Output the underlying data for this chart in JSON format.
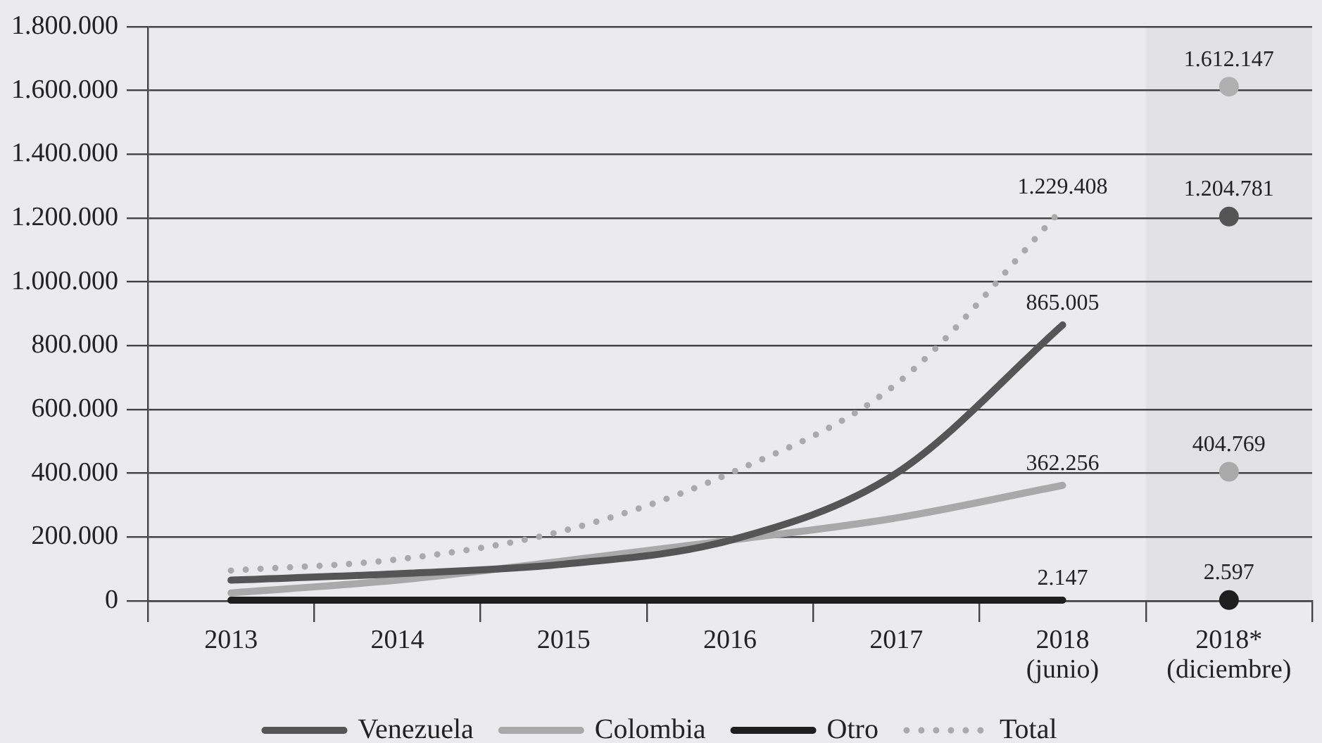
{
  "chart_data": {
    "type": "line",
    "categories": [
      "2013",
      "2014",
      "2015",
      "2016",
      "2017",
      "2018 (junio)",
      "2018* (diciembre)"
    ],
    "series": [
      {
        "name": "Venezuela",
        "color": "#555555",
        "values": [
          65000,
          85000,
          115000,
          190000,
          400000,
          865005,
          null
        ],
        "value_labels": [
          null,
          null,
          null,
          null,
          null,
          "865.005",
          null
        ]
      },
      {
        "name": "Colombia",
        "color": "#a9a9a9",
        "values": [
          25000,
          65000,
          125000,
          190000,
          260000,
          362256,
          null
        ],
        "value_labels": [
          null,
          null,
          null,
          null,
          null,
          "362.256",
          null
        ]
      },
      {
        "name": "Otro",
        "color": "#1e1e1e",
        "values": [
          2000,
          2000,
          2000,
          2000,
          2000,
          2147,
          null
        ],
        "value_labels": [
          null,
          null,
          null,
          null,
          null,
          "2.147",
          null
        ]
      },
      {
        "name": "Total",
        "color": "#aaaaaa",
        "line_style": "dotted",
        "values": [
          95000,
          130000,
          220000,
          400000,
          680000,
          1229408,
          null
        ],
        "value_labels": [
          null,
          null,
          null,
          null,
          null,
          "1.229.408",
          null
        ]
      },
      {
        "type": "scatter",
        "marker": "circle",
        "x": [
          "2018* (diciembre)",
          "2018* (diciembre)",
          "2018* (diciembre)",
          "2018* (diciembre)"
        ],
        "values": [
          1612147,
          1204781,
          404769,
          2597
        ],
        "colors": [
          "#b0b0b0",
          "#555555",
          "#aaaaaa",
          "#1e1e1e"
        ],
        "value_labels": [
          "1.612.147",
          "1.204.781",
          "404.769",
          "2.597"
        ]
      }
    ],
    "ylim": [
      0,
      1800000
    ],
    "yticks": [
      0,
      {
        "value": 200000,
        "label": "200.000"
      },
      {
        "value": 400000,
        "label": "400.000"
      },
      {
        "value": 600000,
        "label": "600.000"
      },
      {
        "value": 800000,
        "label": "800.000"
      },
      {
        "value": 1000000,
        "label": "1.000.000"
      },
      {
        "value": 1200000,
        "label": "1.200.000"
      },
      {
        "value": 1400000,
        "label": "1.400.000"
      },
      {
        "value": 1600000,
        "label": "1.600.000"
      },
      {
        "value": 1800000,
        "label": "1.800.000"
      }
    ],
    "grid": "y",
    "legend": "bottom",
    "marker": "none",
    "line_style": "solid",
    "bands": [
      {
        "axis": "x",
        "from": "2018* (diciembre)",
        "to": "2018* (diciembre)",
        "color": "#e2e2e4"
      }
    ]
  }
}
